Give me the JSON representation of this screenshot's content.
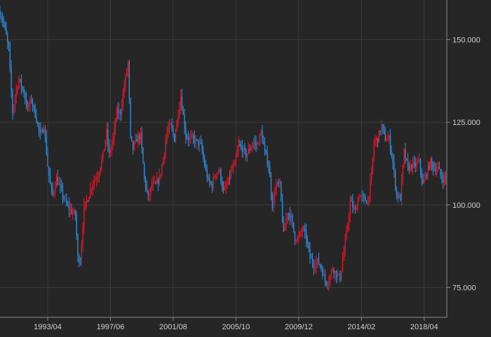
{
  "colors": {
    "background": "#262626",
    "grid": "#3c3c3c",
    "axis": "#8a8a8a",
    "label": "#d0d0d0",
    "up": "#e8172c",
    "down": "#2f8fe0"
  },
  "chart_data": {
    "type": "candlestick",
    "title": "",
    "xlabel": "",
    "ylabel": "",
    "grid": true,
    "y_axis_position": "right",
    "ylim": [
      66,
      162
    ],
    "xlim": [
      "1990/02",
      "2019/10"
    ],
    "yticks": [
      {
        "value": 75,
        "label": "75.000"
      },
      {
        "value": 100,
        "label": "100.000"
      },
      {
        "value": 125,
        "label": "125.000"
      },
      {
        "value": 150,
        "label": "150.000"
      }
    ],
    "xticks": [
      {
        "date": "1993/04",
        "label": "1993/04"
      },
      {
        "date": "1997/06",
        "label": "1997/06"
      },
      {
        "date": "2001/08",
        "label": "2001/08"
      },
      {
        "date": "2005/10",
        "label": "2005/10"
      },
      {
        "date": "2009/12",
        "label": "2009/12"
      },
      {
        "date": "2014/02",
        "label": "2014/02"
      },
      {
        "date": "2018/04",
        "label": "2018/04"
      }
    ],
    "path": [
      [
        "1990/02",
        158
      ],
      [
        "1990/05",
        155
      ],
      [
        "1990/09",
        147
      ],
      [
        "1990/12",
        128
      ],
      [
        "1991/02",
        133
      ],
      [
        "1991/05",
        138
      ],
      [
        "1991/09",
        134
      ],
      [
        "1991/12",
        129
      ],
      [
        "1992/03",
        132
      ],
      [
        "1992/07",
        126
      ],
      [
        "1992/10",
        121
      ],
      [
        "1993/01",
        124
      ],
      [
        "1993/04",
        112
      ],
      [
        "1993/06",
        106
      ],
      [
        "1993/08",
        103
      ],
      [
        "1993/11",
        108
      ],
      [
        "1994/03",
        104
      ],
      [
        "1994/07",
        100
      ],
      [
        "1994/11",
        98
      ],
      [
        "1995/02",
        97
      ],
      [
        "1995/04",
        84
      ],
      [
        "1995/06",
        83
      ],
      [
        "1995/09",
        99
      ],
      [
        "1995/12",
        102
      ],
      [
        "1996/04",
        107
      ],
      [
        "1996/08",
        109
      ],
      [
        "1996/12",
        115
      ],
      [
        "1997/03",
        122
      ],
      [
        "1997/05",
        115
      ],
      [
        "1997/08",
        120
      ],
      [
        "1997/11",
        128
      ],
      [
        "1998/02",
        128
      ],
      [
        "1998/05",
        136
      ],
      [
        "1998/08",
        143
      ],
      [
        "1998/10",
        120
      ],
      [
        "1998/12",
        117
      ],
      [
        "1999/03",
        120
      ],
      [
        "1999/06",
        121
      ],
      [
        "1999/09",
        108
      ],
      [
        "1999/12",
        102
      ],
      [
        "2000/03",
        106
      ],
      [
        "2000/06",
        106
      ],
      [
        "2000/09",
        108
      ],
      [
        "2000/12",
        114
      ],
      [
        "2001/03",
        122
      ],
      [
        "2001/06",
        124
      ],
      [
        "2001/09",
        120
      ],
      [
        "2001/12",
        128
      ],
      [
        "2002/02",
        133
      ],
      [
        "2002/06",
        121
      ],
      [
        "2002/09",
        120
      ],
      [
        "2002/12",
        120
      ],
      [
        "2003/03",
        119
      ],
      [
        "2003/06",
        118
      ],
      [
        "2003/09",
        112
      ],
      [
        "2003/12",
        107
      ],
      [
        "2004/03",
        106
      ],
      [
        "2004/06",
        110
      ],
      [
        "2004/09",
        110
      ],
      [
        "2004/12",
        104
      ],
      [
        "2005/03",
        106
      ],
      [
        "2005/06",
        110
      ],
      [
        "2005/09",
        112
      ],
      [
        "2005/12",
        118
      ],
      [
        "2006/03",
        117
      ],
      [
        "2006/06",
        115
      ],
      [
        "2006/09",
        117
      ],
      [
        "2006/12",
        119
      ],
      [
        "2007/03",
        118
      ],
      [
        "2007/06",
        122
      ],
      [
        "2007/09",
        116
      ],
      [
        "2007/12",
        112
      ],
      [
        "2008/03",
        100
      ],
      [
        "2008/06",
        106
      ],
      [
        "2008/09",
        106
      ],
      [
        "2008/12",
        91
      ],
      [
        "2009/03",
        98
      ],
      [
        "2009/06",
        96
      ],
      [
        "2009/09",
        90
      ],
      [
        "2009/12",
        90
      ],
      [
        "2010/03",
        93
      ],
      [
        "2010/06",
        90
      ],
      [
        "2010/09",
        84
      ],
      [
        "2010/12",
        82
      ],
      [
        "2011/03",
        83
      ],
      [
        "2011/06",
        81
      ],
      [
        "2011/09",
        77
      ],
      [
        "2011/12",
        77
      ],
      [
        "2012/03",
        81
      ],
      [
        "2012/06",
        79
      ],
      [
        "2012/09",
        78
      ],
      [
        "2012/12",
        86
      ],
      [
        "2013/03",
        94
      ],
      [
        "2013/05",
        101
      ],
      [
        "2013/09",
        98
      ],
      [
        "2013/12",
        103
      ],
      [
        "2014/03",
        102
      ],
      [
        "2014/07",
        101
      ],
      [
        "2014/10",
        109
      ],
      [
        "2014/12",
        119
      ],
      [
        "2015/03",
        120
      ],
      [
        "2015/06",
        124
      ],
      [
        "2015/09",
        120
      ],
      [
        "2015/12",
        120
      ],
      [
        "2016/03",
        113
      ],
      [
        "2016/06",
        103
      ],
      [
        "2016/09",
        102
      ],
      [
        "2016/12",
        116
      ],
      [
        "2017/03",
        111
      ],
      [
        "2017/06",
        112
      ],
      [
        "2017/09",
        112
      ],
      [
        "2017/12",
        113
      ],
      [
        "2018/03",
        106
      ],
      [
        "2018/06",
        110
      ],
      [
        "2018/09",
        113
      ],
      [
        "2018/12",
        111
      ],
      [
        "2019/03",
        111
      ],
      [
        "2019/06",
        108
      ],
      [
        "2019/09",
        108
      ]
    ]
  }
}
